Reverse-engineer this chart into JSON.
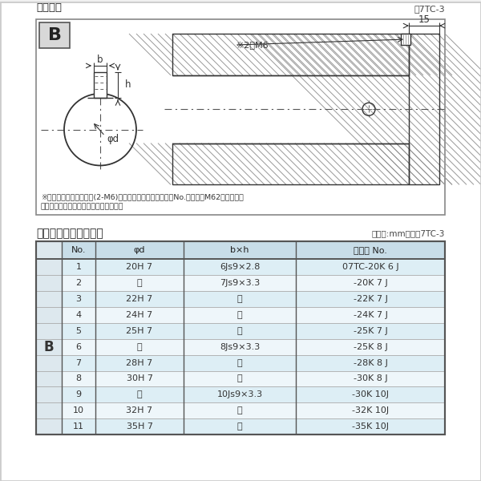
{
  "title_diagram": "軸穴形状",
  "title_diagram_ref": "図7TC-3",
  "note_line1": "※セットボルト用タップ(2-M6)が必要な場合は右記コードNo.の末尾にM62を付ける。",
  "note_line2": "（セットボルトは付属されています。）",
  "table_title": "軸穴形状コード一覧表",
  "table_unit": "（単位:mm）　表7TC-3",
  "col_headers": [
    "No.",
    "φd",
    "b×h",
    "コード No."
  ],
  "table_rows": [
    [
      "1",
      "20H 7",
      "6Js9×2.8",
      "07TC-20K 6 J"
    ],
    [
      "2",
      "〃",
      "7Js9×3.3",
      "-20K 7 J"
    ],
    [
      "3",
      "22H 7",
      "〃",
      "-22K 7 J"
    ],
    [
      "4",
      "24H 7",
      "〃",
      "-24K 7 J"
    ],
    [
      "5",
      "25H 7",
      "〃",
      "-25K 7 J"
    ],
    [
      "6",
      "〃",
      "8Js9×3.3",
      "-25K 8 J"
    ],
    [
      "7",
      "28H 7",
      "〃",
      "-28K 8 J"
    ],
    [
      "8",
      "30H 7",
      "〃",
      "-30K 8 J"
    ],
    [
      "9",
      "〃",
      "10Js9×3.3",
      "-30K 10J"
    ],
    [
      "10",
      "32H 7",
      "〃",
      "-32K 10J"
    ],
    [
      "11",
      "35H 7",
      "〃",
      "-35K 10J"
    ]
  ],
  "row_group_label": "B",
  "bg_color": "#f0f0f0",
  "table_header_bg": "#c8dde8",
  "table_row_bg_odd": "#ddeef5",
  "table_row_bg_even": "#eef6fa",
  "diagram_bg": "#ffffff",
  "text_color": "#222222",
  "hatch_color": "#888888",
  "border_color": "#555555",
  "dim_color": "#444444"
}
